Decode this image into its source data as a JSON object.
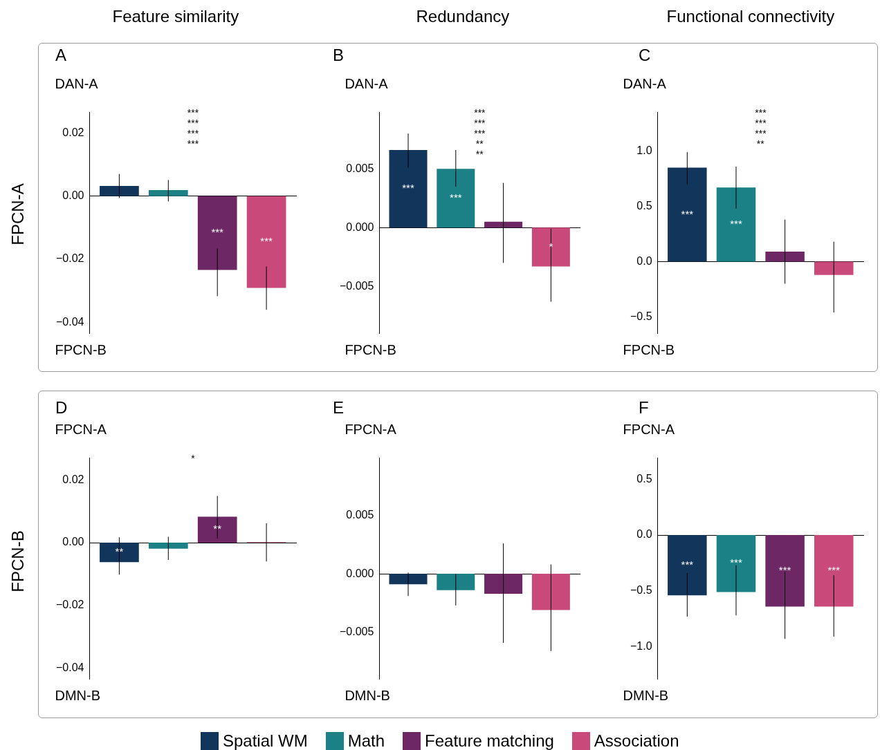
{
  "chart_data": [
    {
      "type": "bar",
      "title": "A",
      "subtitle": "Feature similarity",
      "ylabel": "FPCN-A",
      "categories": [
        null
      ],
      "tick_labels": "y",
      "ylim": [
        -0.0435,
        0.0265
      ],
      "yticks": [
        {
          "value": 0.02,
          "label": "0.02"
        },
        {
          "value": 0,
          "label": "0.00"
        },
        {
          "value": -0.02,
          "label": "−0.02"
        },
        {
          "value": -0.04,
          "label": "−0.04"
        }
      ],
      "annotations": [
        "DAN-A",
        "FPCN-B",
        "***",
        "***",
        "***",
        "***"
      ],
      "series": [
        {
          "color": "#12355b",
          "values": [
            0.0032
          ],
          "errors": [
            [
              -0.0006,
              0.007
            ]
          ]
        },
        {
          "color": "#1b8187",
          "values": [
            0.0019
          ],
          "errors": [
            [
              -0.0017,
              0.0051
            ]
          ]
        },
        {
          "color": "#6e2765",
          "values": [
            -0.0234
          ],
          "errors": [
            [
              -0.0317,
              -0.0166
            ]
          ],
          "value_labels": [
            "***"
          ]
        },
        {
          "color": "#c94a7a",
          "values": [
            -0.0291
          ],
          "errors": [
            [
              -0.036,
              -0.0223
            ]
          ],
          "value_labels": [
            "***"
          ]
        }
      ]
    },
    {
      "type": "bar",
      "title": "B",
      "subtitle": "Redundancy",
      "categories": [
        null
      ],
      "tick_labels": "y",
      "ylim": [
        -0.009,
        0.0098
      ],
      "yticks": [
        {
          "value": 0.005,
          "label": "0.005"
        },
        {
          "value": 0,
          "label": "0.000"
        },
        {
          "value": -0.005,
          "label": "−0.005"
        }
      ],
      "annotations": [
        "DAN-A",
        "FPCN-B",
        "***",
        "***",
        "***",
        "**",
        "**"
      ],
      "series": [
        {
          "color": "#12355b",
          "values": [
            0.0066
          ],
          "errors": [
            [
              0.0051,
              0.008
            ]
          ],
          "value_labels": [
            "***"
          ]
        },
        {
          "color": "#1b8187",
          "values": [
            0.005
          ],
          "errors": [
            [
              0.0035,
              0.0066
            ]
          ],
          "value_labels": [
            "***"
          ]
        },
        {
          "color": "#6e2765",
          "values": [
            0.0005
          ],
          "errors": [
            [
              -0.003,
              0.0038
            ]
          ]
        },
        {
          "color": "#c94a7a",
          "values": [
            -0.0033
          ],
          "errors": [
            [
              -0.0063,
              -0.0001
            ]
          ],
          "value_labels": [
            "*"
          ]
        }
      ]
    },
    {
      "type": "bar",
      "title": "C",
      "subtitle": "Functional connectivity",
      "categories": [
        null
      ],
      "tick_labels": "y",
      "ylim": [
        -0.65,
        1.35
      ],
      "yticks": [
        {
          "value": 1,
          "label": "1.0"
        },
        {
          "value": 0.5,
          "label": "0.5"
        },
        {
          "value": 0,
          "label": "0.0"
        },
        {
          "value": -0.5,
          "label": "−0.5"
        }
      ],
      "annotations": [
        "DAN-A",
        "FPCN-B",
        "***",
        "***",
        "***",
        "**"
      ],
      "series": [
        {
          "color": "#12355b",
          "values": [
            0.85
          ],
          "errors": [
            [
              0.7,
              0.99
            ]
          ],
          "value_labels": [
            "***"
          ]
        },
        {
          "color": "#1b8187",
          "values": [
            0.67
          ],
          "errors": [
            [
              0.48,
              0.86
            ]
          ],
          "value_labels": [
            "***"
          ]
        },
        {
          "color": "#6e2765",
          "values": [
            0.09
          ],
          "errors": [
            [
              -0.2,
              0.38
            ]
          ]
        },
        {
          "color": "#c94a7a",
          "values": [
            -0.12
          ],
          "errors": [
            [
              -0.46,
              0.18
            ]
          ]
        }
      ]
    },
    {
      "type": "bar",
      "title": "D",
      "ylabel": "FPCN-B",
      "categories": [
        null
      ],
      "tick_labels": "y",
      "ylim": [
        -0.0435,
        0.027
      ],
      "yticks": [
        {
          "value": 0.02,
          "label": "0.02"
        },
        {
          "value": 0,
          "label": "0.00"
        },
        {
          "value": -0.02,
          "label": "−0.02"
        },
        {
          "value": -0.04,
          "label": "−0.04"
        }
      ],
      "annotations": [
        "FPCN-A",
        "DMN-B",
        "*"
      ],
      "series": [
        {
          "color": "#12355b",
          "values": [
            -0.0062
          ],
          "errors": [
            [
              -0.0102,
              0.0017
            ]
          ],
          "value_labels": [
            "**"
          ]
        },
        {
          "color": "#1b8187",
          "values": [
            -0.0019
          ],
          "errors": [
            [
              -0.0055,
              0.0019
            ]
          ]
        },
        {
          "color": "#6e2765",
          "values": [
            0.0083
          ],
          "errors": [
            [
              0.0013,
              0.0149
            ]
          ],
          "value_labels": [
            "**"
          ]
        },
        {
          "color": "#c94a7a",
          "values": [
            0.0002
          ],
          "errors": [
            [
              -0.006,
              0.0062
            ]
          ]
        }
      ]
    },
    {
      "type": "bar",
      "title": "E",
      "categories": [
        null
      ],
      "tick_labels": "y",
      "ylim": [
        -0.009,
        0.0099
      ],
      "yticks": [
        {
          "value": 0.005,
          "label": "0.005"
        },
        {
          "value": 0,
          "label": "0.000"
        },
        {
          "value": -0.005,
          "label": "−0.005"
        }
      ],
      "annotations": [
        "FPCN-A",
        "DMN-B"
      ],
      "series": [
        {
          "color": "#12355b",
          "values": [
            -0.0009
          ],
          "errors": [
            [
              -0.0019,
              0.0001
            ]
          ]
        },
        {
          "color": "#1b8187",
          "values": [
            -0.0014
          ],
          "errors": [
            [
              -0.0027,
              0
            ]
          ]
        },
        {
          "color": "#6e2765",
          "values": [
            -0.0017
          ],
          "errors": [
            [
              -0.0059,
              0.0026
            ]
          ]
        },
        {
          "color": "#c94a7a",
          "values": [
            -0.0031
          ],
          "errors": [
            [
              -0.0066,
              0.0008
            ]
          ]
        }
      ]
    },
    {
      "type": "bar",
      "title": "F",
      "categories": [
        null
      ],
      "tick_labels": "y",
      "legend": "bottom",
      "ylim": [
        -1.29,
        0.69
      ],
      "yticks": [
        {
          "value": 0.5,
          "label": "0.5"
        },
        {
          "value": 0,
          "label": "0.0"
        },
        {
          "value": -0.5,
          "label": "−0.5"
        },
        {
          "value": -1,
          "label": "−1.0"
        }
      ],
      "annotations": [
        "FPCN-A",
        "DMN-B"
      ],
      "series": [
        {
          "name": "Spatial WM",
          "color": "#12355b",
          "values": [
            -0.54
          ],
          "errors": [
            [
              -0.73,
              -0.34
            ]
          ],
          "value_labels": [
            "***"
          ]
        },
        {
          "name": "Math",
          "color": "#1b8187",
          "values": [
            -0.51
          ],
          "errors": [
            [
              -0.72,
              -0.27
            ]
          ],
          "value_labels": [
            "***"
          ]
        },
        {
          "name": "Feature matching",
          "color": "#6e2765",
          "values": [
            -0.64
          ],
          "errors": [
            [
              -0.93,
              -0.33
            ]
          ],
          "value_labels": [
            "***"
          ]
        },
        {
          "name": "Association",
          "color": "#c94a7a",
          "values": [
            -0.64
          ],
          "errors": [
            [
              -0.91,
              -0.36
            ]
          ],
          "value_labels": [
            "***"
          ]
        }
      ]
    }
  ]
}
